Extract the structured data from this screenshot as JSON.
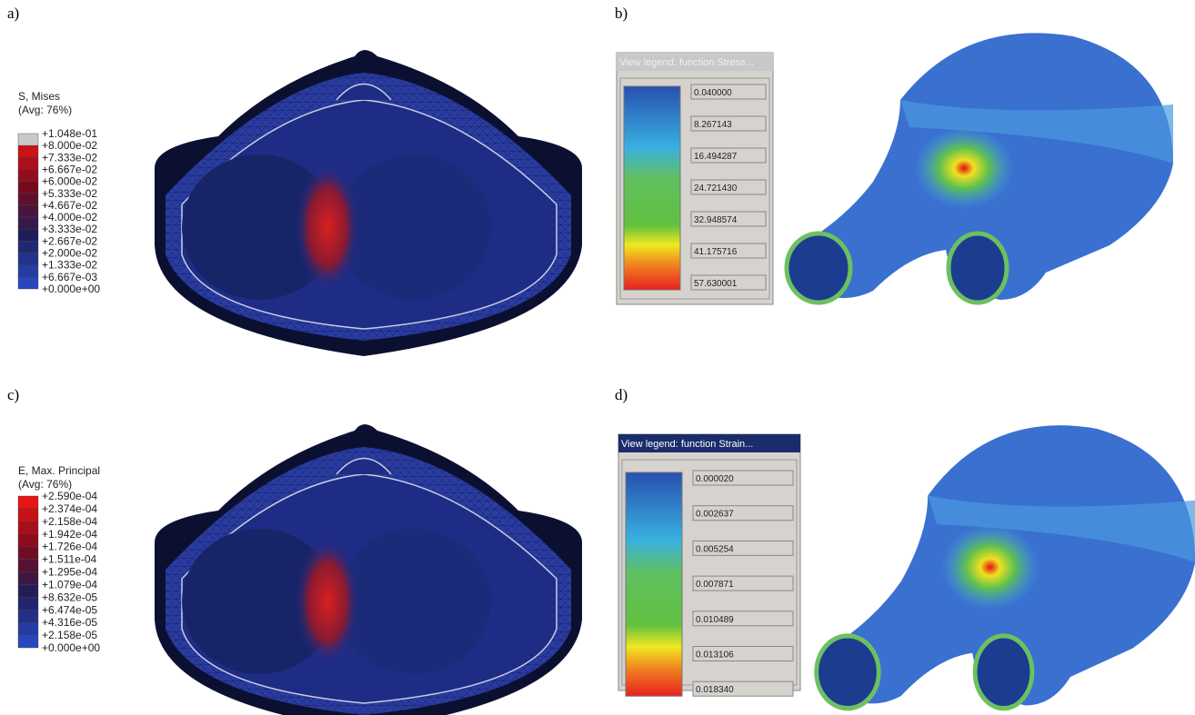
{
  "panels": [
    {
      "label": "a)",
      "legend": {
        "title": [
          "S, Mises",
          "(Avg: 76%)"
        ],
        "values": [
          "+1.048e-01",
          "+8.000e-02",
          "+7.333e-02",
          "+6.667e-02",
          "+6.000e-02",
          "+5.333e-02",
          "+4.667e-02",
          "+4.000e-02",
          "+3.333e-02",
          "+2.667e-02",
          "+2.000e-02",
          "+1.333e-02",
          "+6.667e-03",
          "+0.000e+00"
        ]
      }
    },
    {
      "label": "b)",
      "legend": {
        "title": "View legend: function Stress...",
        "values": [
          "0.040000",
          "8.267143",
          "16.494287",
          "24.721430",
          "32.948574",
          "41.175716",
          "57.630001"
        ]
      }
    },
    {
      "label": "c)",
      "legend": {
        "title": [
          "E, Max. Principal",
          "(Avg: 76%)"
        ],
        "values": [
          "+2.590e-04",
          "+2.374e-04",
          "+2.158e-04",
          "+1.942e-04",
          "+1.726e-04",
          "+1.511e-04",
          "+1.295e-04",
          "+1.079e-04",
          "+8.632e-05",
          "+6.474e-05",
          "+4.316e-05",
          "+2.158e-05",
          "+0.000e+00"
        ]
      }
    },
    {
      "label": "d)",
      "legend": {
        "title": "View legend: function Strain...",
        "values": [
          "0.000020",
          "0.002637",
          "0.005254",
          "0.007871",
          "0.010489",
          "0.013106",
          "0.018340"
        ]
      }
    }
  ]
}
